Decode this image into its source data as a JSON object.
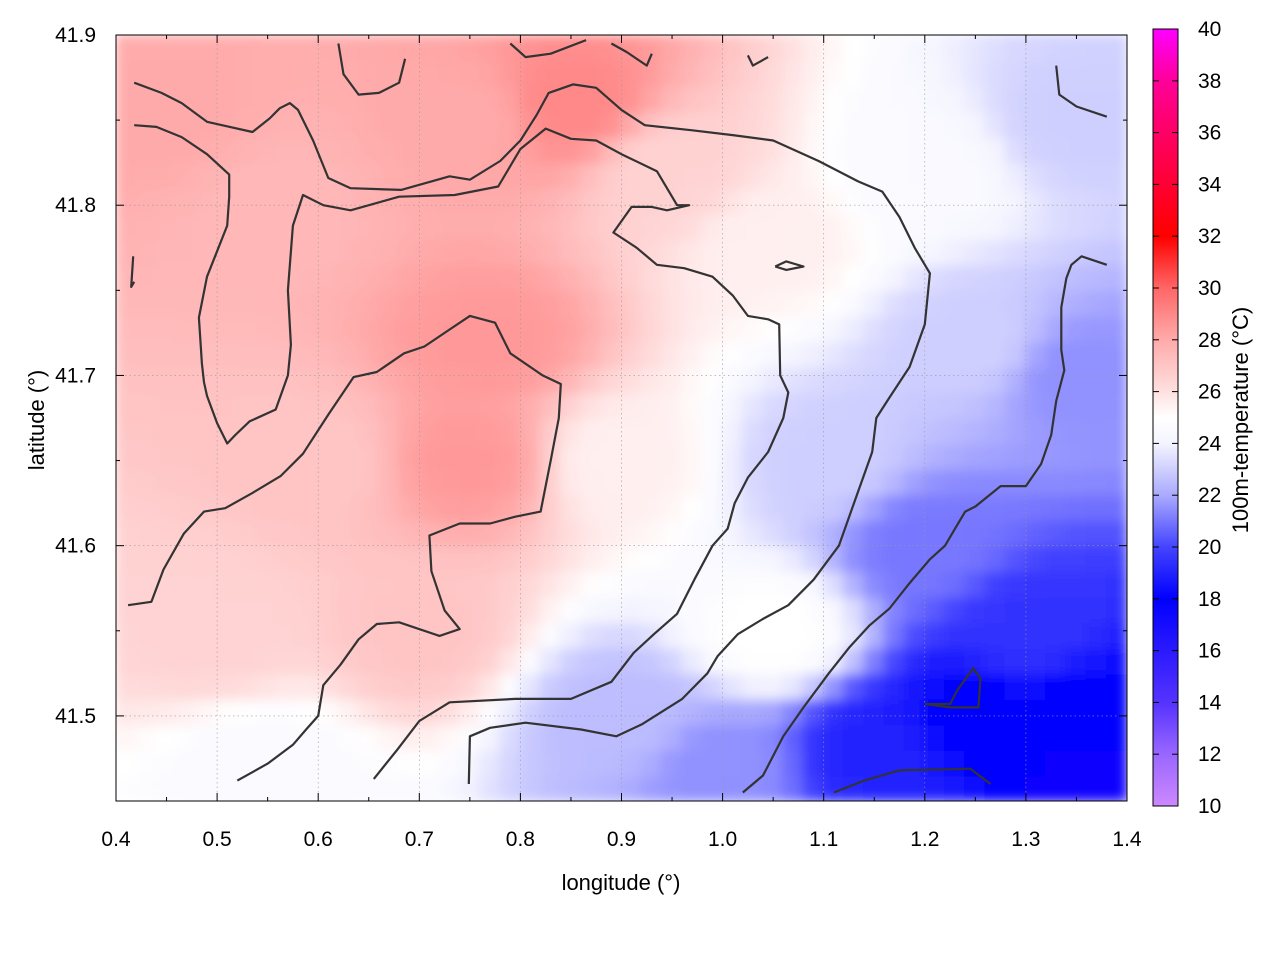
{
  "chart_data": {
    "type": "heatmap",
    "xlabel": "longitude (°)",
    "ylabel": "latitude (°)",
    "colorbar_label": "100m-temperature (°C)",
    "xlim": [
      0.4,
      1.4
    ],
    "ylim": [
      41.45,
      41.9
    ],
    "x_ticks": [
      "0.4",
      "0.5",
      "0.6",
      "0.7",
      "0.8",
      "0.9",
      "1.0",
      "1.1",
      "1.2",
      "1.3",
      "1.4"
    ],
    "x_tick_values": [
      0.4,
      0.5,
      0.6,
      0.7,
      0.8,
      0.9,
      1.0,
      1.1,
      1.2,
      1.3,
      1.4
    ],
    "y_ticks": [
      "41.5",
      "41.6",
      "41.7",
      "41.8",
      "41.9"
    ],
    "y_tick_values": [
      41.5,
      41.6,
      41.7,
      41.8,
      41.9
    ],
    "colorbar_ticks": [
      "10",
      "12",
      "14",
      "16",
      "18",
      "20",
      "22",
      "24",
      "26",
      "28",
      "30",
      "32",
      "34",
      "36",
      "38",
      "40"
    ],
    "colorbar_tick_values": [
      10,
      12,
      14,
      16,
      18,
      20,
      22,
      24,
      26,
      28,
      30,
      32,
      34,
      36,
      38,
      40
    ],
    "colorbar_range": [
      10,
      40
    ],
    "colorscale": [
      [
        10,
        "#cc88ff"
      ],
      [
        12,
        "#9966ff"
      ],
      [
        14,
        "#5533ff"
      ],
      [
        18,
        "#0000ff"
      ],
      [
        20,
        "#4444ff"
      ],
      [
        22,
        "#aaaaff"
      ],
      [
        24,
        "#f4f4ff"
      ],
      [
        25,
        "#ffffff"
      ],
      [
        26,
        "#ffe0e0"
      ],
      [
        28,
        "#ffaaaa"
      ],
      [
        30,
        "#ff6666"
      ],
      [
        32,
        "#ff0000"
      ],
      [
        34,
        "#ff0033"
      ],
      [
        36,
        "#ff0066"
      ],
      [
        38,
        "#ff0099"
      ],
      [
        40,
        "#ff00ff"
      ]
    ],
    "grid": true,
    "field_samples": [
      {
        "x": 0.45,
        "y": 41.85,
        "value": 28.0
      },
      {
        "x": 0.55,
        "y": 41.8,
        "value": 27.5
      },
      {
        "x": 0.75,
        "y": 41.85,
        "value": 28.0
      },
      {
        "x": 0.85,
        "y": 41.86,
        "value": 29.0
      },
      {
        "x": 0.77,
        "y": 41.72,
        "value": 28.5
      },
      {
        "x": 0.75,
        "y": 41.65,
        "value": 28.5
      },
      {
        "x": 0.6,
        "y": 41.65,
        "value": 27.0
      },
      {
        "x": 0.5,
        "y": 41.55,
        "value": 26.5
      },
      {
        "x": 0.7,
        "y": 41.55,
        "value": 27.0
      },
      {
        "x": 0.95,
        "y": 41.82,
        "value": 26.5
      },
      {
        "x": 1.05,
        "y": 41.78,
        "value": 25.5
      },
      {
        "x": 1.2,
        "y": 41.82,
        "value": 24.5
      },
      {
        "x": 1.35,
        "y": 41.85,
        "value": 23.0
      },
      {
        "x": 0.9,
        "y": 41.65,
        "value": 25.5
      },
      {
        "x": 0.55,
        "y": 41.47,
        "value": 24.5
      },
      {
        "x": 0.9,
        "y": 41.5,
        "value": 22.5
      },
      {
        "x": 1.05,
        "y": 41.55,
        "value": 25.0
      },
      {
        "x": 1.1,
        "y": 41.65,
        "value": 23.0
      },
      {
        "x": 1.2,
        "y": 41.6,
        "value": 21.0
      },
      {
        "x": 1.3,
        "y": 41.55,
        "value": 19.5
      },
      {
        "x": 1.25,
        "y": 41.5,
        "value": 18.0
      },
      {
        "x": 1.35,
        "y": 41.5,
        "value": 18.0
      },
      {
        "x": 1.37,
        "y": 41.47,
        "value": 17.5
      },
      {
        "x": 1.0,
        "y": 41.47,
        "value": 21.5
      },
      {
        "x": 1.15,
        "y": 41.48,
        "value": 19.0
      },
      {
        "x": 1.35,
        "y": 41.7,
        "value": 21.5
      },
      {
        "x": 1.25,
        "y": 41.72,
        "value": 23.0
      }
    ],
    "contours": [
      [
        [
          0.418,
          41.872
        ],
        [
          0.445,
          41.866
        ],
        [
          0.465,
          41.86
        ],
        [
          0.49,
          41.849
        ],
        [
          0.535,
          41.843
        ],
        [
          0.552,
          41.851
        ],
        [
          0.562,
          41.857
        ],
        [
          0.572,
          41.86
        ],
        [
          0.58,
          41.856
        ],
        [
          0.595,
          41.838
        ],
        [
          0.61,
          41.816
        ],
        [
          0.632,
          41.81
        ],
        [
          0.682,
          41.809
        ],
        [
          0.73,
          41.817
        ],
        [
          0.75,
          41.815
        ],
        [
          0.78,
          41.826
        ],
        [
          0.8,
          41.838
        ],
        [
          0.816,
          41.853
        ],
        [
          0.828,
          41.866
        ],
        [
          0.852,
          41.871
        ],
        [
          0.875,
          41.869
        ],
        [
          0.9,
          41.856
        ],
        [
          0.923,
          41.847
        ],
        [
          0.97,
          41.844
        ],
        [
          1.012,
          41.841
        ],
        [
          1.05,
          41.838
        ],
        [
          1.095,
          41.826
        ],
        [
          1.134,
          41.814
        ],
        [
          1.158,
          41.808
        ],
        [
          1.175,
          41.793
        ],
        [
          1.19,
          41.775
        ],
        [
          1.205,
          41.76
        ],
        [
          1.2,
          41.73
        ],
        [
          1.185,
          41.705
        ],
        [
          1.165,
          41.687
        ],
        [
          1.152,
          41.675
        ],
        [
          1.148,
          41.655
        ],
        [
          1.13,
          41.625
        ],
        [
          1.115,
          41.6
        ],
        [
          1.09,
          41.58
        ],
        [
          1.065,
          41.565
        ],
        [
          1.04,
          41.557
        ],
        [
          1.015,
          41.548
        ],
        [
          0.995,
          41.535
        ],
        [
          0.985,
          41.525
        ],
        [
          0.96,
          41.51
        ],
        [
          0.92,
          41.495
        ],
        [
          0.895,
          41.488
        ],
        [
          0.86,
          41.492
        ],
        [
          0.805,
          41.496
        ],
        [
          0.77,
          41.493
        ],
        [
          0.75,
          41.488
        ],
        [
          0.749,
          41.46
        ]
      ],
      [
        [
          0.418,
          41.847
        ],
        [
          0.44,
          41.846
        ],
        [
          0.465,
          41.84
        ],
        [
          0.49,
          41.83
        ],
        [
          0.512,
          41.818
        ],
        [
          0.512,
          41.805
        ],
        [
          0.51,
          41.788
        ],
        [
          0.5,
          41.773
        ],
        [
          0.49,
          41.758
        ],
        [
          0.482,
          41.734
        ],
        [
          0.485,
          41.707
        ],
        [
          0.487,
          41.696
        ],
        [
          0.49,
          41.688
        ],
        [
          0.5,
          41.672
        ],
        [
          0.51,
          41.66
        ],
        [
          0.518,
          41.665
        ],
        [
          0.532,
          41.673
        ],
        [
          0.558,
          41.68
        ],
        [
          0.57,
          41.7
        ],
        [
          0.573,
          41.718
        ],
        [
          0.57,
          41.75
        ],
        [
          0.575,
          41.788
        ],
        [
          0.585,
          41.806
        ],
        [
          0.605,
          41.8
        ],
        [
          0.632,
          41.797
        ],
        [
          0.68,
          41.805
        ],
        [
          0.735,
          41.806
        ],
        [
          0.778,
          41.811
        ],
        [
          0.8,
          41.833
        ],
        [
          0.825,
          41.845
        ],
        [
          0.85,
          41.839
        ],
        [
          0.875,
          41.838
        ],
        [
          0.9,
          41.83
        ],
        [
          0.935,
          41.82
        ],
        [
          0.955,
          41.8
        ],
        [
          0.967,
          41.8
        ],
        [
          0.945,
          41.797
        ],
        [
          0.93,
          41.799
        ],
        [
          0.91,
          41.799
        ],
        [
          0.892,
          41.784
        ],
        [
          0.915,
          41.775
        ],
        [
          0.935,
          41.765
        ],
        [
          0.962,
          41.763
        ],
        [
          0.99,
          41.758
        ],
        [
          1.01,
          41.747
        ],
        [
          1.025,
          41.735
        ],
        [
          1.045,
          41.733
        ],
        [
          1.056,
          41.73
        ],
        [
          1.057,
          41.7
        ],
        [
          1.065,
          41.69
        ],
        [
          1.06,
          41.675
        ],
        [
          1.045,
          41.655
        ],
        [
          1.025,
          41.64
        ],
        [
          1.012,
          41.625
        ],
        [
          1.005,
          41.61
        ],
        [
          0.99,
          41.6
        ],
        [
          0.972,
          41.58
        ],
        [
          0.955,
          41.56
        ],
        [
          0.932,
          41.548
        ],
        [
          0.912,
          41.537
        ],
        [
          0.89,
          41.52
        ],
        [
          0.85,
          41.51
        ],
        [
          0.795,
          41.51
        ],
        [
          0.73,
          41.508
        ],
        [
          0.7,
          41.497
        ],
        [
          0.678,
          41.48
        ],
        [
          0.655,
          41.463
        ]
      ],
      [
        [
          0.412,
          41.565
        ],
        [
          0.435,
          41.567
        ],
        [
          0.447,
          41.586
        ],
        [
          0.467,
          41.607
        ],
        [
          0.487,
          41.62
        ],
        [
          0.508,
          41.622
        ],
        [
          0.535,
          41.631
        ],
        [
          0.563,
          41.641
        ],
        [
          0.585,
          41.654
        ],
        [
          0.61,
          41.677
        ],
        [
          0.635,
          41.699
        ],
        [
          0.658,
          41.702
        ],
        [
          0.685,
          41.713
        ],
        [
          0.705,
          41.717
        ],
        [
          0.73,
          41.727
        ],
        [
          0.75,
          41.735
        ],
        [
          0.775,
          41.731
        ],
        [
          0.79,
          41.713
        ],
        [
          0.822,
          41.7
        ],
        [
          0.84,
          41.695
        ],
        [
          0.838,
          41.675
        ],
        [
          0.83,
          41.65
        ],
        [
          0.82,
          41.62
        ],
        [
          0.795,
          41.617
        ],
        [
          0.77,
          41.613
        ],
        [
          0.74,
          41.613
        ],
        [
          0.71,
          41.606
        ],
        [
          0.712,
          41.585
        ],
        [
          0.725,
          41.562
        ],
        [
          0.74,
          41.551
        ],
        [
          0.72,
          41.547
        ],
        [
          0.68,
          41.555
        ],
        [
          0.658,
          41.554
        ],
        [
          0.64,
          41.545
        ],
        [
          0.622,
          41.53
        ],
        [
          0.605,
          41.518
        ],
        [
          0.6,
          41.5
        ],
        [
          0.588,
          41.492
        ],
        [
          0.575,
          41.483
        ],
        [
          0.55,
          41.472
        ],
        [
          0.52,
          41.462
        ]
      ],
      [
        [
          1.02,
          41.455
        ],
        [
          1.04,
          41.465
        ],
        [
          1.06,
          41.488
        ],
        [
          1.08,
          41.505
        ],
        [
          1.105,
          41.525
        ],
        [
          1.125,
          41.54
        ],
        [
          1.145,
          41.553
        ],
        [
          1.165,
          41.563
        ],
        [
          1.185,
          41.578
        ],
        [
          1.205,
          41.592
        ],
        [
          1.22,
          41.6
        ],
        [
          1.23,
          41.61
        ],
        [
          1.24,
          41.62
        ],
        [
          1.25,
          41.623
        ],
        [
          1.275,
          41.635
        ],
        [
          1.3,
          41.635
        ],
        [
          1.315,
          41.648
        ],
        [
          1.325,
          41.665
        ],
        [
          1.33,
          41.685
        ],
        [
          1.338,
          41.703
        ],
        [
          1.335,
          41.715
        ],
        [
          1.335,
          41.74
        ],
        [
          1.34,
          41.757
        ],
        [
          1.345,
          41.765
        ],
        [
          1.355,
          41.77
        ],
        [
          1.38,
          41.765
        ]
      ],
      [
        [
          1.2,
          41.507
        ],
        [
          1.225,
          41.507
        ],
        [
          1.232,
          41.515
        ],
        [
          1.248,
          41.528
        ],
        [
          1.255,
          41.522
        ],
        [
          1.253,
          41.505
        ],
        [
          1.225,
          41.505
        ],
        [
          1.2,
          41.507
        ]
      ],
      [
        [
          1.11,
          41.455
        ],
        [
          1.14,
          41.462
        ],
        [
          1.175,
          41.468
        ],
        [
          1.245,
          41.469
        ],
        [
          1.265,
          41.46
        ]
      ],
      [
        [
          1.052,
          41.764
        ],
        [
          1.063,
          41.767
        ],
        [
          1.08,
          41.764
        ],
        [
          1.063,
          41.762
        ],
        [
          1.052,
          41.764
        ]
      ],
      [
        [
          0.62,
          41.895
        ],
        [
          0.625,
          41.877
        ],
        [
          0.64,
          41.865
        ],
        [
          0.66,
          41.866
        ],
        [
          0.68,
          41.872
        ],
        [
          0.686,
          41.886
        ]
      ],
      [
        [
          0.79,
          41.895
        ],
        [
          0.805,
          41.887
        ],
        [
          0.83,
          41.889
        ],
        [
          0.865,
          41.897
        ]
      ],
      [
        [
          0.89,
          41.895
        ],
        [
          0.905,
          41.89
        ],
        [
          0.925,
          41.882
        ],
        [
          0.93,
          41.889
        ]
      ],
      [
        [
          1.025,
          41.888
        ],
        [
          1.03,
          41.882
        ],
        [
          1.045,
          41.887
        ]
      ],
      [
        [
          0.417,
          41.77
        ],
        [
          0.415,
          41.752
        ],
        [
          0.418,
          41.755
        ]
      ],
      [
        [
          1.33,
          41.882
        ],
        [
          1.333,
          41.865
        ],
        [
          1.35,
          41.858
        ],
        [
          1.38,
          41.852
        ]
      ]
    ]
  }
}
